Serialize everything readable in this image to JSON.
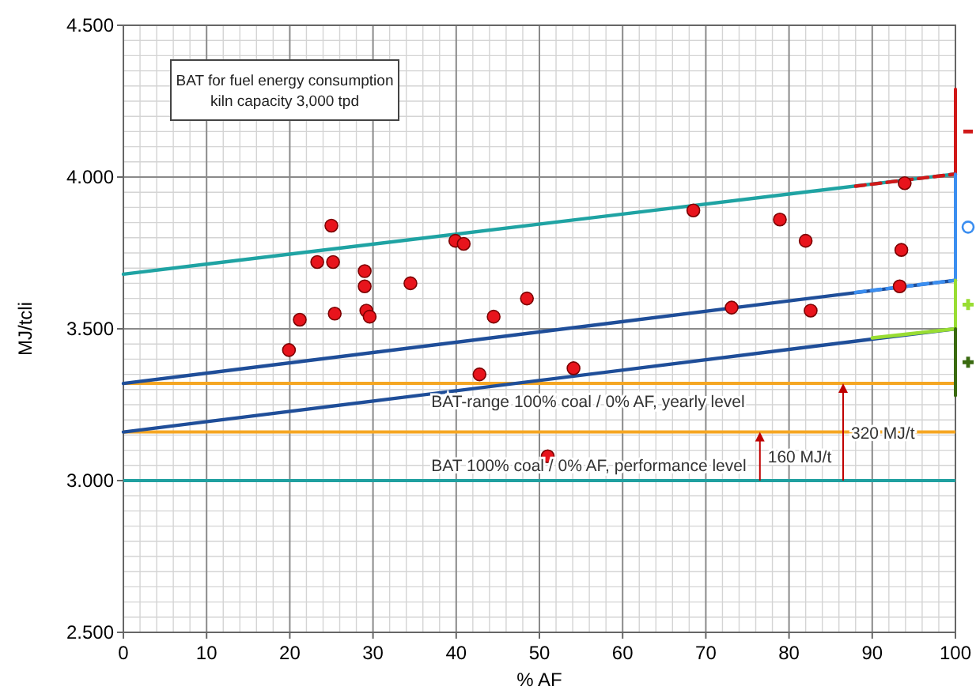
{
  "chart_data": {
    "type": "scatter",
    "title": "BAT for fuel energy consumption",
    "subtitle": "kiln capacity 3,000 tpd",
    "xlabel": "% AF",
    "ylabel": "MJ/tcli",
    "xlim": [
      0,
      100
    ],
    "xticks": [
      0,
      10,
      20,
      30,
      40,
      50,
      60,
      70,
      80,
      90,
      100
    ],
    "ylim": [
      2500,
      4500
    ],
    "yticks": [
      {
        "value": 2500,
        "label": "2.500"
      },
      {
        "value": 3000,
        "label": "3.000"
      },
      {
        "value": 3500,
        "label": "3.500"
      },
      {
        "value": 4000,
        "label": "4.000"
      },
      {
        "value": 4500,
        "label": "4.500"
      }
    ],
    "grid": true,
    "ref_lines": [
      {
        "axis": "y",
        "value": 3000,
        "label": "BAT 100% coal / 0% AF, performance level",
        "color": "#20a0a0"
      },
      {
        "axis": "y",
        "value": 3160,
        "label": null,
        "color": "#f5a623"
      },
      {
        "axis": "y",
        "value": 3320,
        "label": "BAT-range 100% coal / 0% AF, yearly level",
        "color": "#f5a623"
      }
    ],
    "annotations": [
      {
        "text": "160 MJ/t",
        "x": 76.5,
        "y": 3160
      },
      {
        "text": "320 MJ/t",
        "x": 86.5,
        "y": 3320
      }
    ],
    "series": [
      {
        "type": "line",
        "x": [
          0,
          100
        ],
        "values": [
          3680,
          4010
        ],
        "color": "#1fa3a3",
        "line_style": "solid"
      },
      {
        "type": "line",
        "x": [
          0,
          100
        ],
        "values": [
          3320,
          3660
        ],
        "color": "#1f4e99",
        "line_style": "solid"
      },
      {
        "type": "line",
        "x": [
          0,
          100
        ],
        "values": [
          3160,
          3500
        ],
        "color": "#1f4e99",
        "line_style": "solid"
      },
      {
        "type": "line",
        "x": [
          88,
          100
        ],
        "values": [
          3970,
          4010
        ],
        "color": "#d01818",
        "line_style": "dashed"
      },
      {
        "type": "line",
        "x": [
          88,
          100
        ],
        "values": [
          3620,
          3660
        ],
        "color": "#3b8ef0",
        "line_style": "dashed"
      },
      {
        "type": "line",
        "x": [
          90,
          100
        ],
        "values": [
          3470,
          3500
        ],
        "color": "#99dd33",
        "line_style": "solid"
      },
      {
        "type": "line",
        "x": [
          100,
          100
        ],
        "values": [
          4010,
          4290
        ],
        "color": "#d01818",
        "line_style": "solid"
      },
      {
        "type": "line",
        "x": [
          100,
          100
        ],
        "values": [
          3660,
          4010
        ],
        "color": "#3b8ef0",
        "line_style": "solid"
      },
      {
        "type": "line",
        "x": [
          100,
          100
        ],
        "values": [
          3500,
          3660
        ],
        "color": "#99dd33",
        "line_style": "solid"
      },
      {
        "type": "line",
        "x": [
          100,
          100
        ],
        "values": [
          3280,
          3500
        ],
        "color": "#3a6a10",
        "line_style": "solid"
      },
      {
        "color": "#e8141c",
        "marker": "circle",
        "x": [
          19.9,
          21.2,
          23.3,
          25.0,
          25.2,
          25.4,
          29.0,
          29.0,
          29.2,
          29.6,
          34.5,
          39.9,
          40.9,
          44.5,
          42.8,
          48.5,
          93.9,
          68.5,
          78.9,
          82.0,
          93.5,
          93.3,
          73.1,
          82.6,
          54.1,
          51.0
        ],
        "values": [
          3430,
          3530,
          3720,
          3840,
          3720,
          3550,
          3690,
          3640,
          3560,
          3540,
          3650,
          3790,
          3780,
          3540,
          3350,
          3600,
          3980,
          3890,
          3860,
          3790,
          3760,
          3640,
          3570,
          3560,
          3370,
          3080
        ]
      }
    ]
  }
}
